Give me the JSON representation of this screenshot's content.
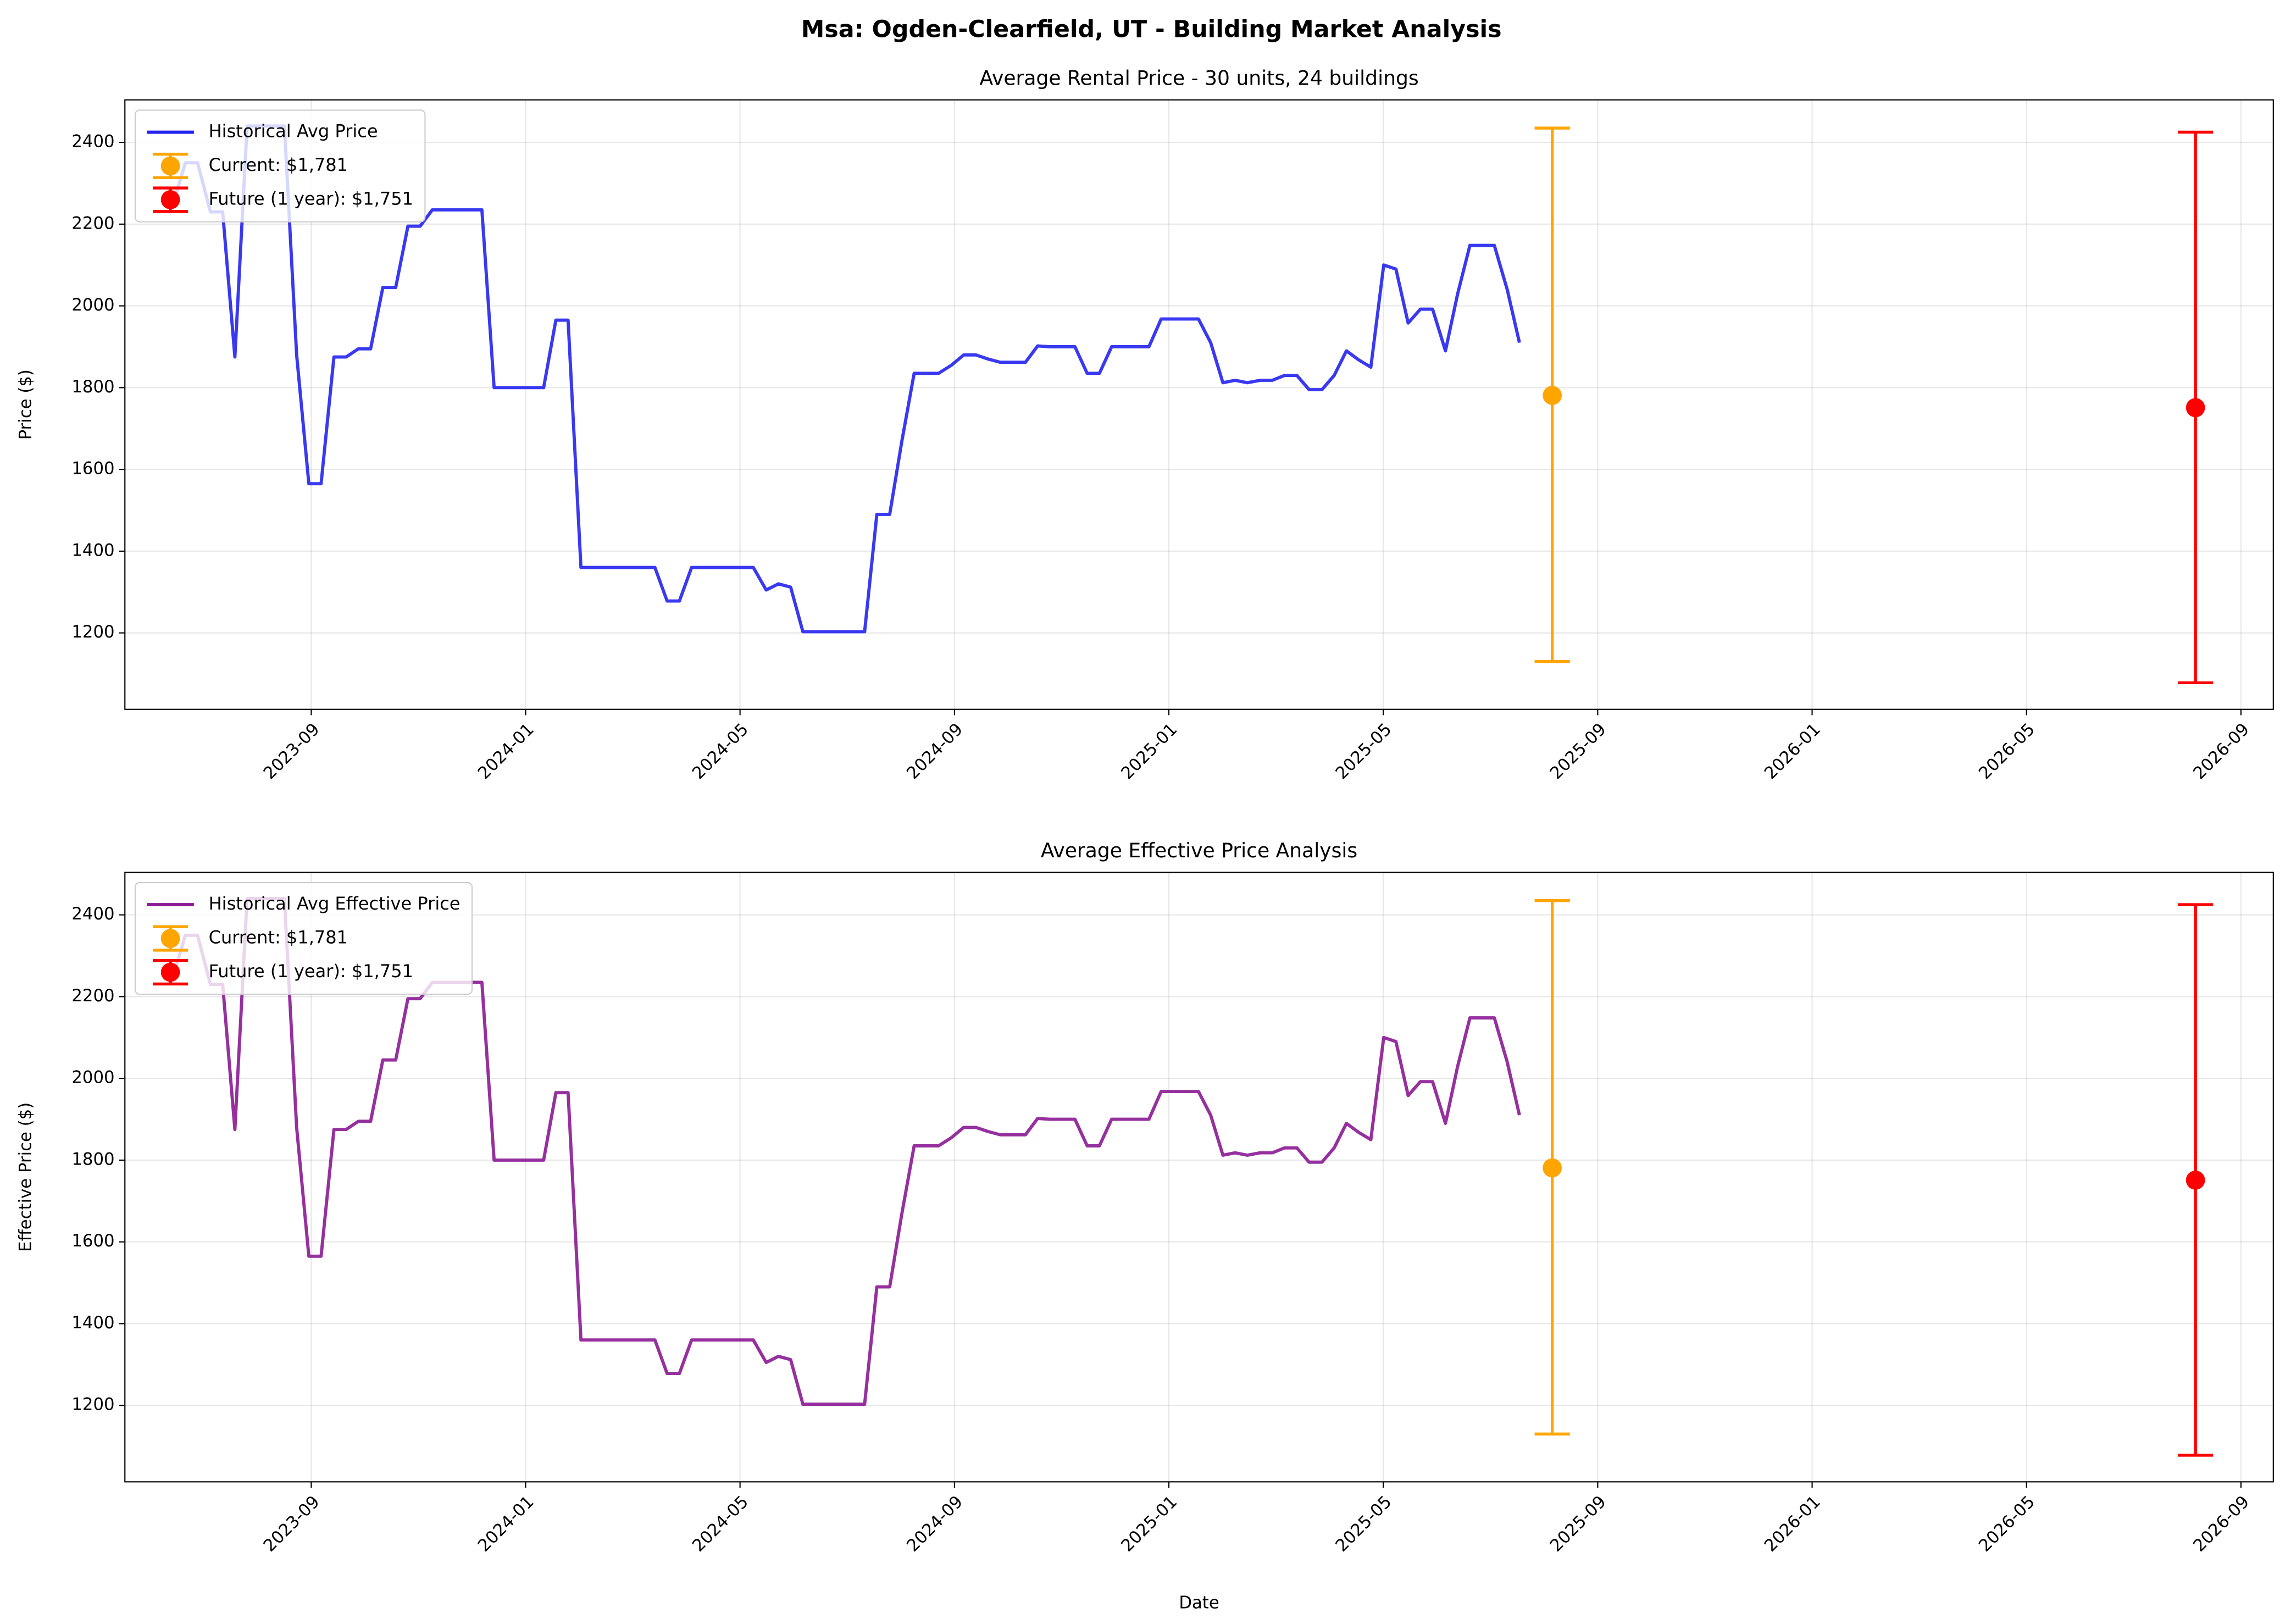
{
  "title": "Msa: Ogden-Clearfield, UT - Building Market Analysis",
  "chart_data": [
    {
      "type": "line",
      "title": "Average Rental Price - 30 units, 24 buildings",
      "ylabel": "Price ($)",
      "xlim": [
        2023.377,
        2026.717
      ],
      "ylim": [
        1013,
        2504
      ],
      "xticks": [
        {
          "value": 2023.6667,
          "label": "2023-09"
        },
        {
          "value": 2024.0,
          "label": "2024-01"
        },
        {
          "value": 2024.3333,
          "label": "2024-05"
        },
        {
          "value": 2024.6667,
          "label": "2024-09"
        },
        {
          "value": 2025.0,
          "label": "2025-01"
        },
        {
          "value": 2025.3333,
          "label": "2025-05"
        },
        {
          "value": 2025.6667,
          "label": "2025-09"
        },
        {
          "value": 2026.0,
          "label": "2026-01"
        },
        {
          "value": 2026.3333,
          "label": "2026-05"
        },
        {
          "value": 2026.6667,
          "label": "2026-09"
        }
      ],
      "yticks": [
        1200,
        1400,
        1600,
        1800,
        2000,
        2200,
        2400
      ],
      "grid": true,
      "legend": "upper left",
      "series": [
        {
          "name": "Historical Avg Price",
          "color": "#2323f0",
          "x": [
            2023.452,
            2023.471,
            2023.49,
            2023.51,
            2023.529,
            2023.548,
            2023.567,
            2023.586,
            2023.606,
            2023.625,
            2023.644,
            2023.663,
            2023.682,
            2023.702,
            2023.721,
            2023.74,
            2023.759,
            2023.778,
            2023.798,
            2023.817,
            2023.836,
            2023.855,
            2023.874,
            2023.894,
            2023.913,
            2023.932,
            2023.951,
            2023.97,
            2023.99,
            2024.009,
            2024.028,
            2024.047,
            2024.066,
            2024.086,
            2024.105,
            2024.124,
            2024.143,
            2024.162,
            2024.182,
            2024.201,
            2024.22,
            2024.239,
            2024.258,
            2024.278,
            2024.297,
            2024.316,
            2024.335,
            2024.354,
            2024.374,
            2024.393,
            2024.412,
            2024.431,
            2024.45,
            2024.47,
            2024.489,
            2024.508,
            2024.527,
            2024.546,
            2024.566,
            2024.585,
            2024.604,
            2024.623,
            2024.642,
            2024.662,
            2024.681,
            2024.7,
            2024.719,
            2024.738,
            2024.758,
            2024.777,
            2024.796,
            2024.815,
            2024.834,
            2024.854,
            2024.873,
            2024.892,
            2024.911,
            2024.93,
            2024.95,
            2024.969,
            2024.988,
            2025.007,
            2025.026,
            2025.046,
            2025.065,
            2025.084,
            2025.103,
            2025.122,
            2025.142,
            2025.161,
            2025.18,
            2025.199,
            2025.218,
            2025.238,
            2025.257,
            2025.276,
            2025.295,
            2025.314,
            2025.334,
            2025.353,
            2025.372,
            2025.391,
            2025.41,
            2025.43,
            2025.449,
            2025.468,
            2025.487,
            2025.506,
            2025.526,
            2025.545
          ],
          "values": [
            2250,
            2350,
            2350,
            2230,
            2230,
            1875,
            2440,
            2440,
            2440,
            2440,
            1880,
            1565,
            1565,
            1875,
            1875,
            1895,
            1895,
            2045,
            2045,
            2195,
            2195,
            2235,
            2235,
            2235,
            2235,
            2235,
            1800,
            1800,
            1800,
            1800,
            1800,
            1965,
            1965,
            1360,
            1360,
            1360,
            1360,
            1360,
            1360,
            1360,
            1278,
            1278,
            1360,
            1360,
            1360,
            1360,
            1360,
            1360,
            1305,
            1320,
            1312,
            1203,
            1203,
            1203,
            1203,
            1203,
            1203,
            1490,
            1490,
            1670,
            1835,
            1835,
            1835,
            1855,
            1880,
            1880,
            1870,
            1862,
            1862,
            1862,
            1902,
            1900,
            1900,
            1900,
            1835,
            1835,
            1900,
            1900,
            1900,
            1900,
            1968,
            1968,
            1968,
            1968,
            1910,
            1812,
            1818,
            1812,
            1818,
            1818,
            1830,
            1830,
            1795,
            1795,
            1830,
            1890,
            1868,
            1850,
            2100,
            2090,
            1958,
            1992,
            1992,
            1890,
            2030,
            2148,
            2148,
            2148,
            2040,
            1910
          ]
        }
      ],
      "points": [
        {
          "name": "Current: $1,781",
          "color": "#ffa500",
          "x": 2025.596,
          "value": 1781,
          "yerr": [
            651,
            654
          ]
        },
        {
          "name": "Future (1 year): $1,751",
          "color": "#ff0000",
          "x": 2026.596,
          "value": 1751,
          "yerr": [
            673,
            674
          ]
        }
      ]
    },
    {
      "type": "line",
      "title": "Average Effective Price Analysis",
      "ylabel": "Effective Price ($)",
      "xlabel": "Date",
      "xlim": [
        2023.377,
        2026.717
      ],
      "ylim": [
        1013,
        2504
      ],
      "xticks": [
        {
          "value": 2023.6667,
          "label": "2023-09"
        },
        {
          "value": 2024.0,
          "label": "2024-01"
        },
        {
          "value": 2024.3333,
          "label": "2024-05"
        },
        {
          "value": 2024.6667,
          "label": "2024-09"
        },
        {
          "value": 2025.0,
          "label": "2025-01"
        },
        {
          "value": 2025.3333,
          "label": "2025-05"
        },
        {
          "value": 2025.6667,
          "label": "2025-09"
        },
        {
          "value": 2026.0,
          "label": "2026-01"
        },
        {
          "value": 2026.3333,
          "label": "2026-05"
        },
        {
          "value": 2026.6667,
          "label": "2026-09"
        }
      ],
      "yticks": [
        1200,
        1400,
        1600,
        1800,
        2000,
        2200,
        2400
      ],
      "grid": true,
      "legend": "upper left",
      "series": [
        {
          "name": "Historical Avg Effective Price",
          "color": "#8b1a94",
          "x": [
            2023.452,
            2023.471,
            2023.49,
            2023.51,
            2023.529,
            2023.548,
            2023.567,
            2023.586,
            2023.606,
            2023.625,
            2023.644,
            2023.663,
            2023.682,
            2023.702,
            2023.721,
            2023.74,
            2023.759,
            2023.778,
            2023.798,
            2023.817,
            2023.836,
            2023.855,
            2023.874,
            2023.894,
            2023.913,
            2023.932,
            2023.951,
            2023.97,
            2023.99,
            2024.009,
            2024.028,
            2024.047,
            2024.066,
            2024.086,
            2024.105,
            2024.124,
            2024.143,
            2024.162,
            2024.182,
            2024.201,
            2024.22,
            2024.239,
            2024.258,
            2024.278,
            2024.297,
            2024.316,
            2024.335,
            2024.354,
            2024.374,
            2024.393,
            2024.412,
            2024.431,
            2024.45,
            2024.47,
            2024.489,
            2024.508,
            2024.527,
            2024.546,
            2024.566,
            2024.585,
            2024.604,
            2024.623,
            2024.642,
            2024.662,
            2024.681,
            2024.7,
            2024.719,
            2024.738,
            2024.758,
            2024.777,
            2024.796,
            2024.815,
            2024.834,
            2024.854,
            2024.873,
            2024.892,
            2024.911,
            2024.93,
            2024.95,
            2024.969,
            2024.988,
            2025.007,
            2025.026,
            2025.046,
            2025.065,
            2025.084,
            2025.103,
            2025.122,
            2025.142,
            2025.161,
            2025.18,
            2025.199,
            2025.218,
            2025.238,
            2025.257,
            2025.276,
            2025.295,
            2025.314,
            2025.334,
            2025.353,
            2025.372,
            2025.391,
            2025.41,
            2025.43,
            2025.449,
            2025.468,
            2025.487,
            2025.506,
            2025.526,
            2025.545
          ],
          "values": [
            2250,
            2350,
            2350,
            2230,
            2230,
            1875,
            2440,
            2440,
            2440,
            2440,
            1880,
            1565,
            1565,
            1875,
            1875,
            1895,
            1895,
            2045,
            2045,
            2195,
            2195,
            2235,
            2235,
            2235,
            2235,
            2235,
            1800,
            1800,
            1800,
            1800,
            1800,
            1965,
            1965,
            1360,
            1360,
            1360,
            1360,
            1360,
            1360,
            1360,
            1278,
            1278,
            1360,
            1360,
            1360,
            1360,
            1360,
            1360,
            1305,
            1320,
            1312,
            1203,
            1203,
            1203,
            1203,
            1203,
            1203,
            1490,
            1490,
            1670,
            1835,
            1835,
            1835,
            1855,
            1880,
            1880,
            1870,
            1862,
            1862,
            1862,
            1902,
            1900,
            1900,
            1900,
            1835,
            1835,
            1900,
            1900,
            1900,
            1900,
            1968,
            1968,
            1968,
            1968,
            1910,
            1812,
            1818,
            1812,
            1818,
            1818,
            1830,
            1830,
            1795,
            1795,
            1830,
            1890,
            1868,
            1850,
            2100,
            2090,
            1958,
            1992,
            1992,
            1890,
            2030,
            2148,
            2148,
            2148,
            2040,
            1910
          ]
        }
      ],
      "points": [
        {
          "name": "Current: $1,781",
          "color": "#ffa500",
          "x": 2025.596,
          "value": 1781,
          "yerr": [
            651,
            654
          ]
        },
        {
          "name": "Future (1 year): $1,751",
          "color": "#ff0000",
          "x": 2026.596,
          "value": 1751,
          "yerr": [
            673,
            674
          ]
        }
      ]
    }
  ]
}
